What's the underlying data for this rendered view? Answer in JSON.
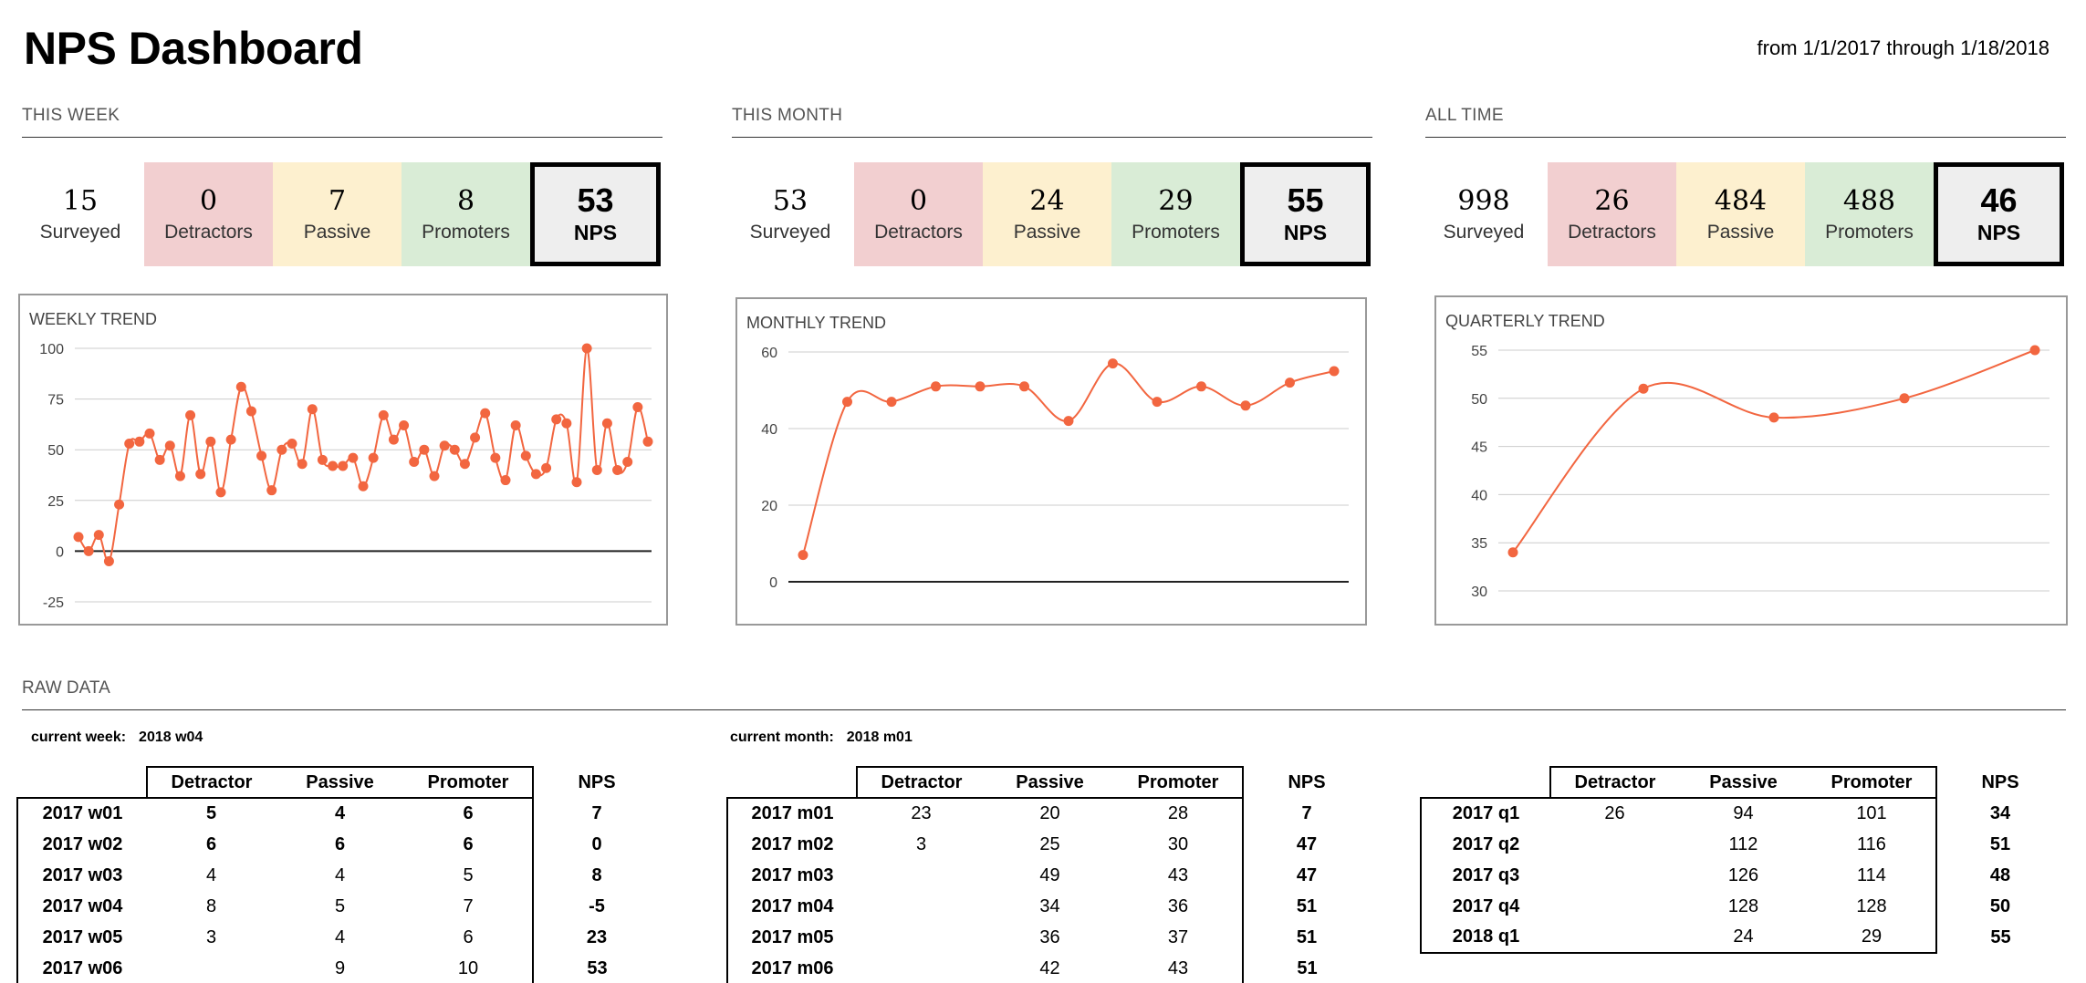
{
  "header": {
    "title": "NPS Dashboard",
    "date_range": "from 1/1/2017 through 1/18/2018"
  },
  "colors": {
    "detractors_bg": "#f2cfd0",
    "passive_bg": "#fdf0cf",
    "promoters_bg": "#d9ecd6",
    "nps_bg": "#eeeeee",
    "trend_line": "#f26640"
  },
  "sections": [
    {
      "heading": "THIS WEEK",
      "surveyed": "15",
      "surveyed_label": "Surveyed",
      "detractors": "0",
      "detractors_label": "Detractors",
      "passive": "7",
      "passive_label": "Passive",
      "promoters": "8",
      "promoters_label": "Promoters",
      "nps": "53",
      "nps_label": "NPS"
    },
    {
      "heading": "THIS MONTH",
      "surveyed": "53",
      "surveyed_label": "Surveyed",
      "detractors": "0",
      "detractors_label": "Detractors",
      "passive": "24",
      "passive_label": "Passive",
      "promoters": "29",
      "promoters_label": "Promoters",
      "nps": "55",
      "nps_label": "NPS"
    },
    {
      "heading": "ALL TIME",
      "surveyed": "998",
      "surveyed_label": "Surveyed",
      "detractors": "26",
      "detractors_label": "Detractors",
      "passive": "484",
      "passive_label": "Passive",
      "promoters": "488",
      "promoters_label": "Promoters",
      "nps": "46",
      "nps_label": "NPS"
    }
  ],
  "chart_data": [
    {
      "type": "line",
      "title": "WEEKLY TREND",
      "ylim": [
        -25,
        100
      ],
      "yticks": [
        100,
        75,
        50,
        25,
        0,
        -25
      ],
      "grid": true,
      "values": [
        7,
        0,
        8,
        -5,
        23,
        53,
        54,
        58,
        45,
        52,
        37,
        67,
        38,
        54,
        29,
        55,
        81,
        69,
        47,
        30,
        50,
        53,
        43,
        70,
        45,
        42,
        42,
        46,
        32,
        46,
        67,
        55,
        62,
        44,
        50,
        37,
        52,
        50,
        43,
        56,
        68,
        46,
        35,
        62,
        47,
        38,
        41,
        65,
        63,
        34,
        100,
        40,
        63,
        40,
        44,
        71,
        54
      ]
    },
    {
      "type": "line",
      "title": "MONTHLY TREND",
      "ylim": [
        0,
        60
      ],
      "yticks": [
        60,
        40,
        20,
        0
      ],
      "grid": true,
      "values": [
        7,
        47,
        47,
        51,
        51,
        51,
        42,
        57,
        47,
        51,
        46,
        52,
        55
      ]
    },
    {
      "type": "line",
      "title": "QUARTERLY TREND",
      "ylim": [
        30,
        55
      ],
      "yticks": [
        55,
        50,
        45,
        40,
        35,
        30
      ],
      "grid": true,
      "values": [
        34,
        51,
        48,
        50,
        55
      ]
    }
  ],
  "raw": {
    "heading": "RAW DATA",
    "current_week_label": "current week:",
    "current_week_value": "2018 w04",
    "current_month_label": "current month:",
    "current_month_value": "2018 m01",
    "columns": [
      "Detractor",
      "Passive",
      "Promoter",
      "NPS"
    ],
    "weekly": [
      {
        "label": "2017 w01",
        "det": "5",
        "pas": "4",
        "pro": "6",
        "nps": "7"
      },
      {
        "label": "2017 w02",
        "det": "6",
        "pas": "6",
        "pro": "6",
        "nps": "0"
      },
      {
        "label": "2017 w03",
        "det": "4",
        "pas": "4",
        "pro": "5",
        "nps": "8"
      },
      {
        "label": "2017 w04",
        "det": "8",
        "pas": "5",
        "pro": "7",
        "nps": "-5"
      },
      {
        "label": "2017 w05",
        "det": "3",
        "pas": "4",
        "pro": "6",
        "nps": "23"
      },
      {
        "label": "2017 w06",
        "det": "",
        "pas": "9",
        "pro": "10",
        "nps": "53"
      }
    ],
    "monthly": [
      {
        "label": "2017 m01",
        "det": "23",
        "pas": "20",
        "pro": "28",
        "nps": "7"
      },
      {
        "label": "2017 m02",
        "det": "3",
        "pas": "25",
        "pro": "30",
        "nps": "47"
      },
      {
        "label": "2017 m03",
        "det": "",
        "pas": "49",
        "pro": "43",
        "nps": "47"
      },
      {
        "label": "2017 m04",
        "det": "",
        "pas": "34",
        "pro": "36",
        "nps": "51"
      },
      {
        "label": "2017 m05",
        "det": "",
        "pas": "36",
        "pro": "37",
        "nps": "51"
      },
      {
        "label": "2017 m06",
        "det": "",
        "pas": "42",
        "pro": "43",
        "nps": "51"
      }
    ],
    "quarterly": [
      {
        "label": "2017 q1",
        "det": "26",
        "pas": "94",
        "pro": "101",
        "nps": "34"
      },
      {
        "label": "2017 q2",
        "det": "",
        "pas": "112",
        "pro": "116",
        "nps": "51"
      },
      {
        "label": "2017 q3",
        "det": "",
        "pas": "126",
        "pro": "114",
        "nps": "48"
      },
      {
        "label": "2017 q4",
        "det": "",
        "pas": "128",
        "pro": "128",
        "nps": "50"
      },
      {
        "label": "2018 q1",
        "det": "",
        "pas": "24",
        "pro": "29",
        "nps": "55"
      }
    ]
  }
}
